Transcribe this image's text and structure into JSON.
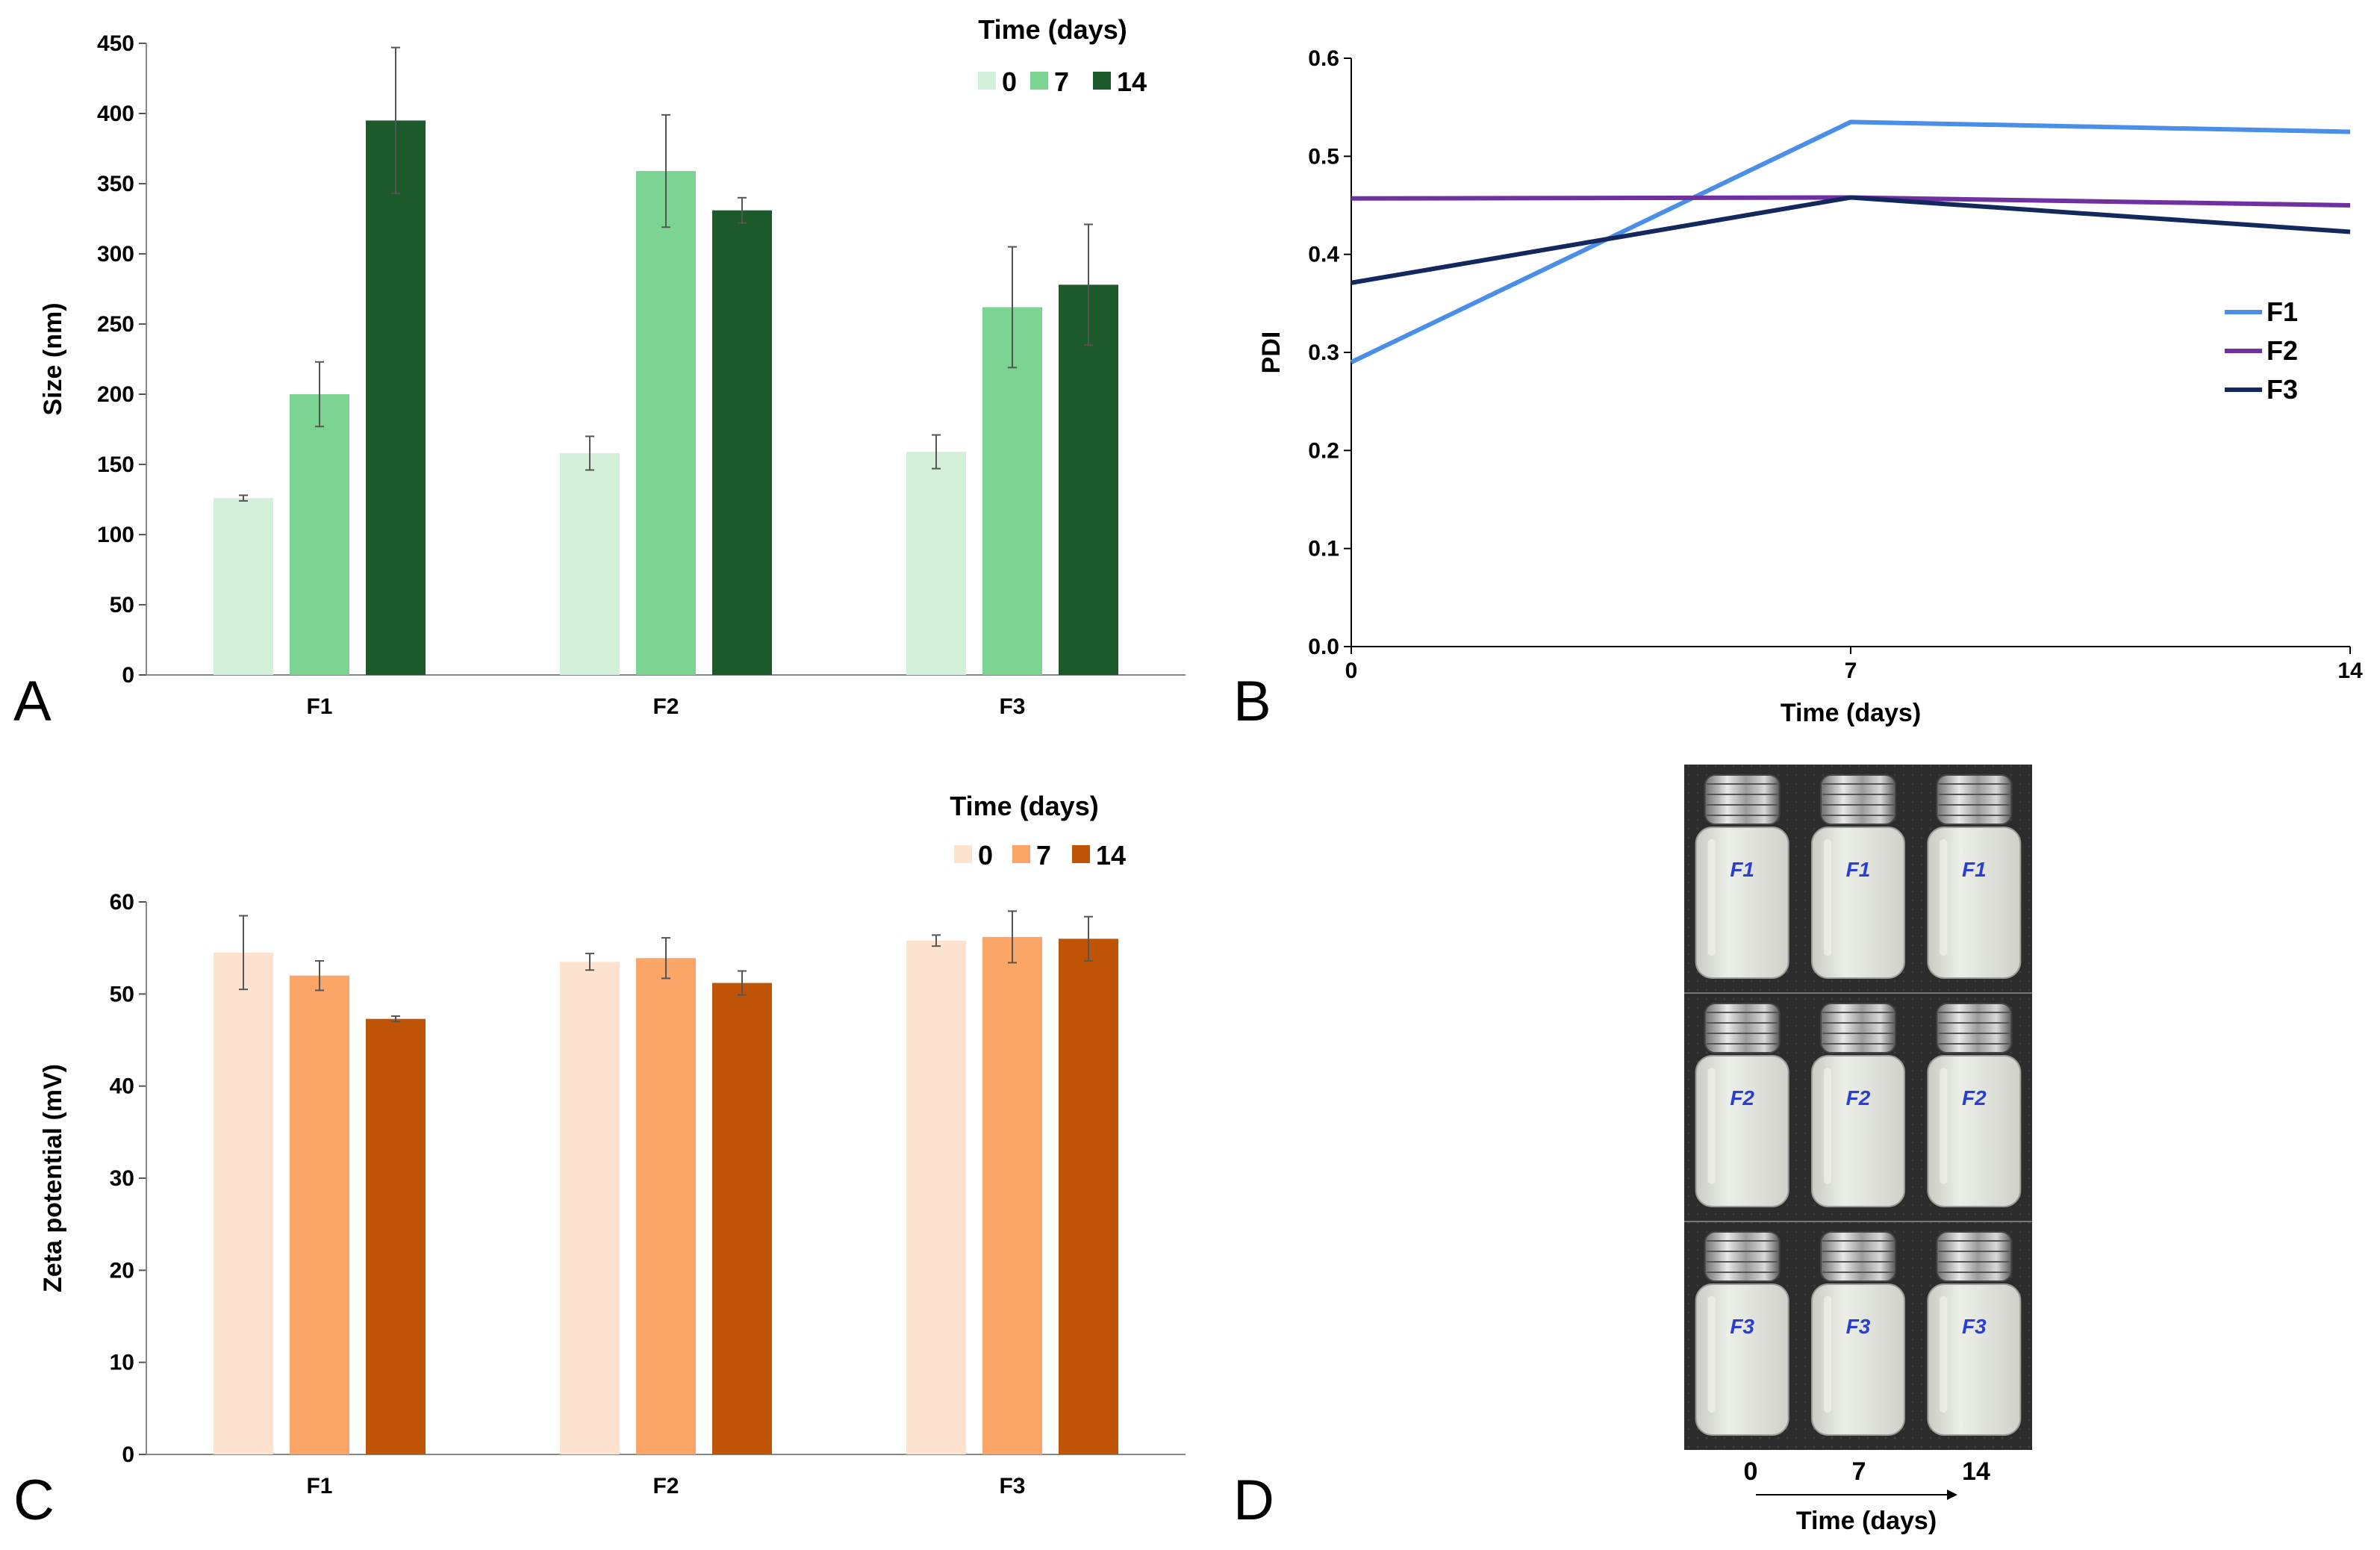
{
  "chart_data": [
    {
      "panel": "A",
      "type": "bar",
      "title": "",
      "categories": [
        "F1",
        "F2",
        "F3"
      ],
      "xlabel": "",
      "ylabel": "Size (nm)",
      "ylim": [
        0,
        450
      ],
      "yticks": [
        "0",
        "50",
        "100",
        "150",
        "200",
        "250",
        "300",
        "350",
        "400",
        "450"
      ],
      "legend_title": "Time (days)",
      "legend_position": "top-right",
      "series": [
        {
          "name": "0",
          "color": "#d3f0da",
          "values": [
            126,
            158,
            159
          ],
          "errors": [
            2,
            12,
            12
          ]
        },
        {
          "name": "7",
          "color": "#7bd492",
          "values": [
            200,
            359,
            262
          ],
          "errors": [
            23,
            40,
            43
          ]
        },
        {
          "name": "14",
          "color": "#1c5a2c",
          "values": [
            395,
            331,
            278
          ],
          "errors": [
            52,
            9,
            43
          ]
        }
      ]
    },
    {
      "panel": "B",
      "type": "line",
      "title": "",
      "x": [
        0,
        7,
        14
      ],
      "xticks": [
        "0",
        "7",
        "14"
      ],
      "xlabel": "Time (days)",
      "ylabel": "PDI",
      "ylim": [
        0,
        0.6
      ],
      "yticks": [
        "0.0",
        "0.1",
        "0.2",
        "0.3",
        "0.4",
        "0.5",
        "0.6"
      ],
      "legend_position": "right",
      "series": [
        {
          "name": "F1",
          "color": "#4a8ee8",
          "values": [
            0.29,
            0.535,
            0.525
          ]
        },
        {
          "name": "F2",
          "color": "#7030a0",
          "values": [
            0.457,
            0.458,
            0.45
          ]
        },
        {
          "name": "F3",
          "color": "#13285e",
          "values": [
            0.371,
            0.458,
            0.423
          ]
        }
      ]
    },
    {
      "panel": "C",
      "type": "bar",
      "title": "",
      "categories": [
        "F1",
        "F2",
        "F3"
      ],
      "xlabel": "",
      "ylabel": "Zeta potential (mV)",
      "ylim": [
        0,
        60
      ],
      "yticks": [
        "0",
        "10",
        "20",
        "30",
        "40",
        "50",
        "60"
      ],
      "legend_title": "Time (days)",
      "legend_position": "top-right",
      "series": [
        {
          "name": "0",
          "color": "#fde3cf",
          "values": [
            54.5,
            53.5,
            55.8
          ],
          "errors": [
            4,
            0.9,
            0.6
          ]
        },
        {
          "name": "7",
          "color": "#fba566",
          "values": [
            52,
            53.9,
            56.2
          ],
          "errors": [
            1.6,
            2.2,
            2.8
          ]
        },
        {
          "name": "14",
          "color": "#c05406",
          "values": [
            47.3,
            51.2,
            56
          ],
          "errors": [
            0.3,
            1.3,
            2.4
          ]
        }
      ]
    }
  ],
  "panel_labels": {
    "a": "A",
    "b": "B",
    "c": "C",
    "d": "D"
  },
  "photo": {
    "rows": [
      {
        "labels": [
          "F1",
          "F1",
          "F1"
        ]
      },
      {
        "labels": [
          "F2",
          "F2",
          "F2"
        ]
      },
      {
        "labels": [
          "F3",
          "F3",
          "F3"
        ]
      }
    ],
    "time_ticks": [
      "0",
      "7",
      "14"
    ],
    "time_label": "Time (days)"
  }
}
